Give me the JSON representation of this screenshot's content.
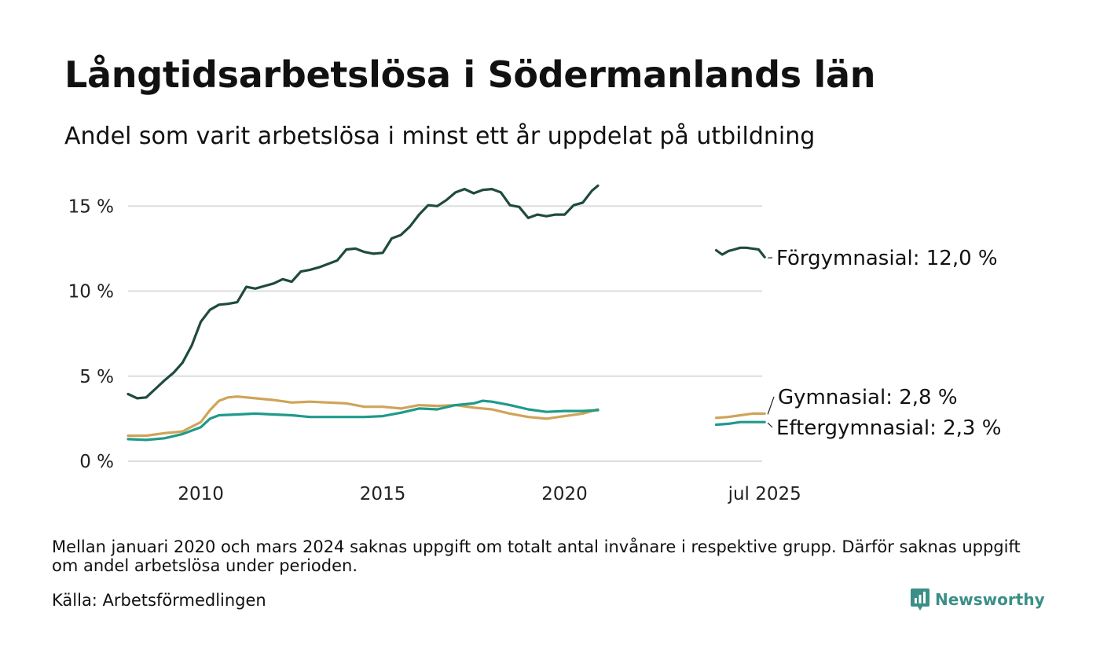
{
  "header": {
    "title": "Långtidsarbetslösa i Södermanlands län",
    "subtitle": "Andel som varit arbetslösa i minst ett år uppdelat på utbildning"
  },
  "footer": {
    "note": "Mellan januari 2020 och mars 2024 saknas uppgift om totalt antal invånare i respektive grupp. Därför saknas uppgift om andel arbetslösa under perioden.",
    "source": "Källa: Arbetsförmedlingen",
    "brand": "Newsworthy"
  },
  "colors": {
    "forgymnasial": "#1f4a40",
    "gymnasial": "#cfa458",
    "eftergymnasial": "#1f9a8a",
    "grid": "#dddddd",
    "brand": "#3a8f86"
  },
  "icons": [
    "newsworthy-logo-icon"
  ],
  "chart_data": {
    "type": "line",
    "title": "Långtidsarbetslösa i Södermanlands län",
    "subtitle": "Andel som varit arbetslösa i minst ett år uppdelat på utbildning",
    "xlabel": "",
    "ylabel": "",
    "ylim": [
      0,
      16
    ],
    "xlim": [
      "2008-01",
      "2025-07"
    ],
    "grid": "horizontal",
    "legend": "end-of-line labels, right",
    "y_ticks": [
      {
        "value": 0,
        "label": "0 %"
      },
      {
        "value": 5,
        "label": "5 %"
      },
      {
        "value": 10,
        "label": "10 %"
      },
      {
        "value": 15,
        "label": "15 %"
      }
    ],
    "x_ticks": [
      {
        "value": "2010-01",
        "label": "2010"
      },
      {
        "value": "2015-01",
        "label": "2015"
      },
      {
        "value": "2020-01",
        "label": "2020"
      },
      {
        "value": "2025-07",
        "label": "jul 2025"
      }
    ],
    "series": [
      {
        "name": "Förgymnasial",
        "color": "#1f4a40",
        "end_label": "Förgymnasial: 12,0 %",
        "segments": [
          {
            "x": [
              "2008-01",
              "2008-04",
              "2008-07",
              "2008-10",
              "2009-01",
              "2009-04",
              "2009-07",
              "2009-10",
              "2010-01",
              "2010-04",
              "2010-07",
              "2010-10",
              "2011-01",
              "2011-04",
              "2011-07",
              "2011-10",
              "2012-01",
              "2012-04",
              "2012-07",
              "2012-10",
              "2013-01",
              "2013-04",
              "2013-07",
              "2013-10",
              "2014-01",
              "2014-04",
              "2014-07",
              "2014-10",
              "2015-01",
              "2015-04",
              "2015-07",
              "2015-10",
              "2016-01",
              "2016-04",
              "2016-07",
              "2016-10",
              "2017-01",
              "2017-04",
              "2017-07",
              "2017-10",
              "2018-01",
              "2018-04",
              "2018-07",
              "2018-10",
              "2019-01",
              "2019-04",
              "2019-07",
              "2019-10",
              "2020-01",
              "2020-04",
              "2020-07",
              "2020-10",
              "2020-12"
            ],
            "y": [
              3.95,
              3.7,
              3.75,
              4.25,
              4.75,
              5.2,
              5.8,
              6.8,
              8.2,
              8.9,
              9.2,
              9.25,
              9.35,
              10.25,
              10.15,
              10.3,
              10.45,
              10.7,
              10.55,
              11.15,
              11.25,
              11.4,
              11.6,
              11.8,
              12.45,
              12.5,
              12.3,
              12.2,
              12.25,
              13.1,
              13.3,
              13.8,
              14.5,
              15.05,
              15.0,
              15.35,
              15.8,
              16.0,
              15.75,
              15.95,
              16.0,
              15.8,
              15.05,
              14.95,
              14.3,
              14.5,
              14.4,
              14.5,
              14.5,
              15.05,
              15.2,
              15.9,
              16.2
            ]
          },
          {
            "x": [
              "2024-03",
              "2024-05",
              "2024-07",
              "2024-09",
              "2024-11",
              "2025-01",
              "2025-03",
              "2025-05",
              "2025-07"
            ],
            "y": [
              12.4,
              12.15,
              12.35,
              12.45,
              12.55,
              12.55,
              12.5,
              12.45,
              12.0
            ]
          }
        ]
      },
      {
        "name": "Gymnasial",
        "color": "#cfa458",
        "end_label": "Gymnasial:  2,8 %",
        "segments": [
          {
            "x": [
              "2008-01",
              "2008-07",
              "2009-01",
              "2009-07",
              "2010-01",
              "2010-04",
              "2010-07",
              "2010-10",
              "2011-01",
              "2011-07",
              "2012-01",
              "2012-07",
              "2013-01",
              "2013-07",
              "2014-01",
              "2014-07",
              "2015-01",
              "2015-07",
              "2016-01",
              "2016-07",
              "2017-01",
              "2017-07",
              "2018-01",
              "2018-07",
              "2019-01",
              "2019-07",
              "2020-01",
              "2020-07",
              "2020-12"
            ],
            "y": [
              1.5,
              1.5,
              1.65,
              1.75,
              2.3,
              3.0,
              3.55,
              3.75,
              3.8,
              3.7,
              3.6,
              3.45,
              3.5,
              3.45,
              3.4,
              3.2,
              3.2,
              3.1,
              3.3,
              3.25,
              3.3,
              3.15,
              3.05,
              2.8,
              2.6,
              2.5,
              2.65,
              2.8,
              3.05
            ]
          },
          {
            "x": [
              "2024-03",
              "2024-07",
              "2024-11",
              "2025-03",
              "2025-07"
            ],
            "y": [
              2.55,
              2.6,
              2.7,
              2.8,
              2.8
            ]
          }
        ]
      },
      {
        "name": "Eftergymnasial",
        "color": "#1f9a8a",
        "end_label": "Eftergymnasial:  2,3 %",
        "segments": [
          {
            "x": [
              "2008-01",
              "2008-07",
              "2009-01",
              "2009-07",
              "2010-01",
              "2010-04",
              "2010-07",
              "2011-01",
              "2011-07",
              "2012-01",
              "2012-07",
              "2013-01",
              "2013-07",
              "2014-01",
              "2014-07",
              "2015-01",
              "2015-07",
              "2016-01",
              "2016-07",
              "2017-01",
              "2017-07",
              "2017-10",
              "2018-01",
              "2018-07",
              "2019-01",
              "2019-07",
              "2020-01",
              "2020-07",
              "2020-12"
            ],
            "y": [
              1.3,
              1.25,
              1.35,
              1.6,
              2.0,
              2.5,
              2.7,
              2.75,
              2.8,
              2.75,
              2.7,
              2.6,
              2.6,
              2.6,
              2.6,
              2.65,
              2.85,
              3.1,
              3.05,
              3.3,
              3.4,
              3.55,
              3.5,
              3.3,
              3.05,
              2.9,
              2.95,
              2.95,
              3.0
            ]
          },
          {
            "x": [
              "2024-03",
              "2024-07",
              "2024-11",
              "2025-03",
              "2025-07"
            ],
            "y": [
              2.15,
              2.2,
              2.3,
              2.3,
              2.3
            ]
          }
        ]
      }
    ]
  }
}
